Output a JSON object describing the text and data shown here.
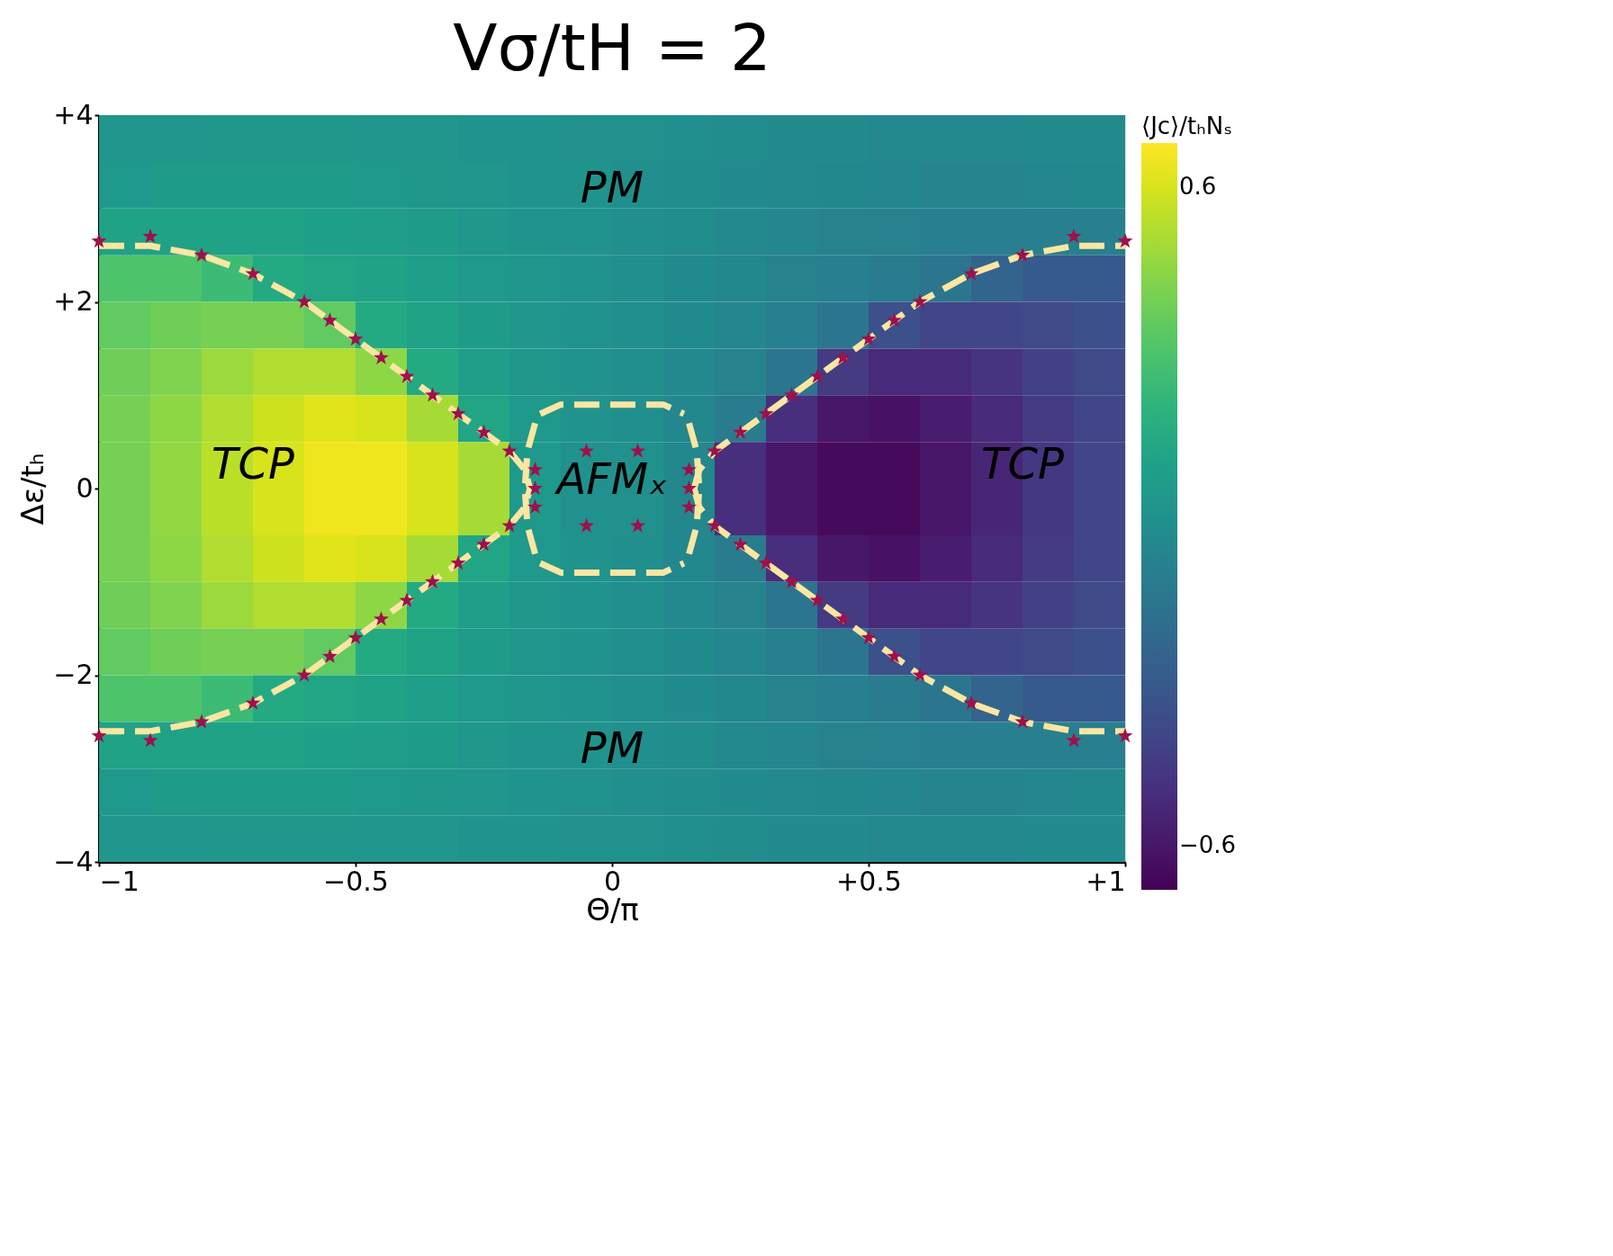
{
  "chart_data": {
    "type": "heatmap",
    "title": "Vσ/tH = 2",
    "xlabel": "Θ/π",
    "ylabel": "Δε/tₕ",
    "clabel": "⟨Jc⟩/tₕNₛ",
    "x": [
      -0.95,
      -0.85,
      -0.75,
      -0.65,
      -0.55,
      -0.45,
      -0.35,
      -0.25,
      -0.15,
      -0.05,
      0.05,
      0.15,
      0.25,
      0.35,
      0.45,
      0.55,
      0.65,
      0.75,
      0.85,
      0.95
    ],
    "y": [
      3.75,
      3.25,
      2.75,
      2.25,
      1.75,
      1.25,
      0.75,
      0.25,
      -0.25,
      -0.75,
      -1.25,
      -1.75,
      -2.25,
      -2.75,
      -3.25,
      -3.75
    ],
    "cells": [
      [
        0.03,
        0.03,
        0.04,
        0.04,
        0.04,
        0.03,
        0.03,
        0.02,
        0.01,
        0.0,
        0.0,
        -0.01,
        -0.02,
        -0.03,
        -0.03,
        -0.04,
        -0.04,
        -0.04,
        -0.03,
        -0.03
      ],
      [
        0.05,
        0.06,
        0.07,
        0.07,
        0.06,
        0.05,
        0.04,
        0.03,
        0.02,
        0.01,
        -0.01,
        -0.02,
        -0.03,
        -0.04,
        -0.05,
        -0.06,
        -0.07,
        -0.07,
        -0.06,
        -0.05
      ],
      [
        0.1,
        0.1,
        0.1,
        0.1,
        0.09,
        0.08,
        0.06,
        0.04,
        0.02,
        0.01,
        -0.01,
        -0.02,
        -0.04,
        -0.06,
        -0.08,
        -0.09,
        -0.1,
        -0.1,
        -0.1,
        -0.1
      ],
      [
        0.3,
        0.3,
        0.25,
        0.15,
        0.12,
        0.1,
        0.08,
        0.05,
        0.03,
        0.01,
        -0.01,
        -0.03,
        -0.05,
        -0.08,
        -0.1,
        -0.12,
        -0.15,
        -0.25,
        -0.3,
        -0.3
      ],
      [
        0.35,
        0.38,
        0.4,
        0.4,
        0.35,
        0.15,
        0.1,
        0.06,
        0.03,
        0.01,
        -0.01,
        -0.03,
        -0.06,
        -0.1,
        -0.15,
        -0.35,
        -0.4,
        -0.4,
        -0.38,
        -0.35
      ],
      [
        0.38,
        0.42,
        0.48,
        0.52,
        0.52,
        0.45,
        0.15,
        0.08,
        0.04,
        0.01,
        -0.01,
        -0.04,
        -0.08,
        -0.15,
        -0.45,
        -0.52,
        -0.52,
        -0.48,
        -0.42,
        -0.38
      ],
      [
        0.4,
        0.45,
        0.52,
        0.58,
        0.62,
        0.6,
        0.5,
        0.12,
        0.05,
        0.01,
        -0.01,
        -0.05,
        -0.12,
        -0.5,
        -0.6,
        -0.62,
        -0.58,
        -0.52,
        -0.45,
        -0.4
      ],
      [
        0.4,
        0.46,
        0.54,
        0.6,
        0.65,
        0.65,
        0.6,
        0.5,
        0.05,
        0.0,
        0.0,
        -0.05,
        -0.5,
        -0.6,
        -0.65,
        -0.65,
        -0.6,
        -0.54,
        -0.46,
        -0.4
      ],
      [
        0.4,
        0.46,
        0.54,
        0.6,
        0.65,
        0.65,
        0.6,
        0.5,
        0.05,
        0.0,
        0.0,
        -0.05,
        -0.5,
        -0.6,
        -0.65,
        -0.65,
        -0.6,
        -0.54,
        -0.46,
        -0.4
      ],
      [
        0.4,
        0.45,
        0.52,
        0.58,
        0.62,
        0.6,
        0.5,
        0.12,
        0.05,
        0.01,
        -0.01,
        -0.05,
        -0.12,
        -0.5,
        -0.6,
        -0.62,
        -0.58,
        -0.52,
        -0.45,
        -0.4
      ],
      [
        0.38,
        0.42,
        0.48,
        0.52,
        0.52,
        0.45,
        0.15,
        0.08,
        0.04,
        0.01,
        -0.01,
        -0.04,
        -0.08,
        -0.15,
        -0.45,
        -0.52,
        -0.52,
        -0.48,
        -0.42,
        -0.38
      ],
      [
        0.35,
        0.38,
        0.4,
        0.4,
        0.35,
        0.15,
        0.1,
        0.06,
        0.03,
        0.01,
        -0.01,
        -0.03,
        -0.06,
        -0.1,
        -0.15,
        -0.35,
        -0.4,
        -0.4,
        -0.38,
        -0.35
      ],
      [
        0.3,
        0.3,
        0.25,
        0.15,
        0.12,
        0.1,
        0.08,
        0.05,
        0.03,
        0.01,
        -0.01,
        -0.03,
        -0.05,
        -0.08,
        -0.1,
        -0.12,
        -0.15,
        -0.25,
        -0.3,
        -0.3
      ],
      [
        0.1,
        0.1,
        0.1,
        0.1,
        0.09,
        0.08,
        0.06,
        0.04,
        0.02,
        0.01,
        -0.01,
        -0.02,
        -0.04,
        -0.06,
        -0.08,
        -0.09,
        -0.1,
        -0.1,
        -0.1,
        -0.1
      ],
      [
        0.05,
        0.06,
        0.07,
        0.07,
        0.06,
        0.05,
        0.04,
        0.03,
        0.02,
        0.01,
        -0.01,
        -0.02,
        -0.03,
        -0.04,
        -0.05,
        -0.06,
        -0.07,
        -0.07,
        -0.06,
        -0.05
      ],
      [
        0.03,
        0.03,
        0.04,
        0.04,
        0.04,
        0.03,
        0.03,
        0.02,
        0.01,
        0.0,
        0.0,
        -0.01,
        -0.02,
        -0.03,
        -0.03,
        -0.04,
        -0.04,
        -0.04,
        -0.03,
        -0.03
      ]
    ],
    "clim": [
      -0.68,
      0.68
    ],
    "cticks": [
      {
        "value": -0.6,
        "label": "−0.6"
      },
      0.6
    ],
    "xlim": [
      -1,
      1
    ],
    "ylim": [
      -4,
      4
    ],
    "xticks": [
      {
        "value": -1,
        "label": "−1"
      },
      {
        "value": -0.5,
        "label": "−0.5"
      },
      0,
      {
        "value": 0.5,
        "label": "+0.5"
      },
      {
        "value": 1,
        "label": "+1"
      }
    ],
    "yticks": [
      {
        "value": -4,
        "label": "−4"
      },
      {
        "value": -2,
        "label": "−2"
      },
      0,
      {
        "value": 2,
        "label": "+2"
      },
      {
        "value": 4,
        "label": "+4"
      }
    ],
    "grid": false,
    "series": [
      {
        "type": "line",
        "color": "#fbe6a2",
        "line_style": "dashed",
        "x": [
          -1,
          -0.9,
          -0.8,
          -0.7,
          -0.6,
          -0.5,
          -0.4,
          -0.3,
          -0.2,
          -0.17,
          -0.16
        ],
        "values": [
          2.6,
          2.6,
          2.5,
          2.3,
          2.0,
          1.6,
          1.2,
          0.8,
          0.4,
          0.2,
          0
        ]
      },
      {
        "type": "line",
        "color": "#fbe6a2",
        "line_style": "dashed",
        "x": [
          -1,
          -0.9,
          -0.8,
          -0.7,
          -0.6,
          -0.5,
          -0.4,
          -0.3,
          -0.2,
          -0.17,
          -0.16
        ],
        "values": [
          -2.6,
          -2.6,
          -2.5,
          -2.3,
          -2.0,
          -1.6,
          -1.2,
          -0.8,
          -0.4,
          -0.2,
          0
        ]
      },
      {
        "type": "line",
        "color": "#fbe6a2",
        "line_style": "dashed",
        "x": [
          0.16,
          0.17,
          0.2,
          0.3,
          0.4,
          0.5,
          0.6,
          0.7,
          0.8,
          0.9,
          1
        ],
        "values": [
          0,
          0.2,
          0.4,
          0.8,
          1.2,
          1.6,
          2.0,
          2.3,
          2.5,
          2.6,
          2.6
        ]
      },
      {
        "type": "line",
        "color": "#fbe6a2",
        "line_style": "dashed",
        "x": [
          0.16,
          0.17,
          0.2,
          0.3,
          0.4,
          0.5,
          0.6,
          0.7,
          0.8,
          0.9,
          1
        ],
        "values": [
          0,
          -0.2,
          -0.4,
          -0.8,
          -1.2,
          -1.6,
          -2.0,
          -2.3,
          -2.5,
          -2.6,
          -2.6
        ]
      },
      {
        "type": "line",
        "color": "#fbe6a2",
        "line_style": "dashed",
        "x": [
          -0.14,
          -0.1,
          0.1,
          0.14
        ],
        "values": [
          0.8,
          0.9,
          0.9,
          0.8
        ]
      },
      {
        "type": "line",
        "color": "#fbe6a2",
        "line_style": "dashed",
        "x": [
          -0.14,
          -0.1,
          0.1,
          0.14
        ],
        "values": [
          -0.8,
          -0.9,
          -0.9,
          -0.8
        ]
      },
      {
        "type": "line",
        "color": "#fbe6a2",
        "line_style": "dashed",
        "x": [
          -0.15,
          -0.165,
          -0.17,
          -0.165,
          -0.15
        ],
        "values": [
          0.7,
          0.4,
          0,
          -0.4,
          -0.7
        ]
      },
      {
        "type": "line",
        "color": "#fbe6a2",
        "line_style": "dashed",
        "x": [
          0.15,
          0.165,
          0.17,
          0.165,
          0.15
        ],
        "values": [
          0.7,
          0.4,
          0,
          -0.4,
          -0.7
        ]
      },
      {
        "type": "scatter",
        "color": "#a0104a",
        "marker": "star",
        "x": [
          -1,
          -0.9,
          -0.8,
          -0.7,
          -0.6,
          -0.55,
          -0.5,
          -0.45,
          -0.4,
          -0.35,
          -0.3,
          -0.25,
          -0.2,
          -0.15,
          -0.15,
          -0.05,
          0.05,
          -1,
          -0.9,
          -0.8,
          -0.7,
          -0.6,
          -0.55,
          -0.5,
          -0.45,
          -0.4,
          -0.35,
          -0.3,
          -0.25,
          -0.2,
          -0.15,
          -0.05,
          0.05,
          1,
          0.9,
          0.8,
          0.7,
          0.6,
          0.55,
          0.5,
          0.45,
          0.4,
          0.35,
          0.3,
          0.25,
          0.2,
          0.15,
          0.15,
          1,
          0.9,
          0.8,
          0.7,
          0.6,
          0.55,
          0.5,
          0.45,
          0.4,
          0.35,
          0.3,
          0.25,
          0.2,
          0.15
        ],
        "values": [
          2.65,
          2.7,
          2.5,
          2.3,
          2.0,
          1.8,
          1.6,
          1.4,
          1.2,
          1.0,
          0.8,
          0.6,
          0.4,
          0.2,
          0,
          0.4,
          0.4,
          -2.65,
          -2.7,
          -2.5,
          -2.3,
          -2.0,
          -1.8,
          -1.6,
          -1.4,
          -1.2,
          -1.0,
          -0.8,
          -0.6,
          -0.4,
          -0.2,
          -0.4,
          -0.4,
          2.65,
          2.7,
          2.5,
          2.3,
          2.0,
          1.8,
          1.6,
          1.4,
          1.2,
          1.0,
          0.8,
          0.6,
          0.4,
          0.2,
          0,
          -2.65,
          -2.7,
          -2.5,
          -2.3,
          -2.0,
          -1.8,
          -1.6,
          -1.4,
          -1.2,
          -1.0,
          -0.8,
          -0.6,
          -0.4,
          -0.2
        ]
      }
    ],
    "annotations": [
      "PM",
      "PM",
      "TCP",
      "TCP",
      "AFMₓ"
    ]
  }
}
